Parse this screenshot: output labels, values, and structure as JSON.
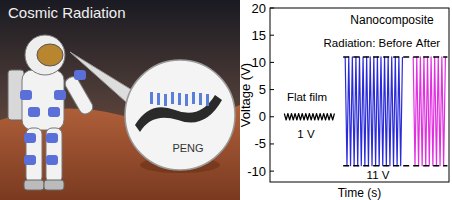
{
  "illustration": {
    "title": "Cosmic Radiation",
    "label": "PENG"
  },
  "chart_data": {
    "type": "line",
    "y_label": "Voltage (V)",
    "x_label": "Time (s)",
    "xlim": [
      0,
      100
    ],
    "ylim": [
      -12,
      20
    ],
    "yticks": [
      -10,
      -5,
      0,
      5,
      10,
      15,
      20
    ],
    "tick_labels": "y",
    "grid": false,
    "series": [
      {
        "color": "#000000",
        "x": [
          8,
          9,
          10,
          11,
          12,
          13,
          14,
          15,
          16,
          17,
          18,
          19,
          20,
          21,
          22,
          23,
          24,
          25,
          26,
          27,
          28,
          29,
          30,
          31,
          32,
          33,
          34,
          35,
          36
        ],
        "values": [
          0.6,
          -0.6,
          0.6,
          -0.6,
          0.6,
          -0.6,
          0.6,
          -0.6,
          0.6,
          -0.6,
          0.6,
          -0.6,
          0.6,
          -0.6,
          0.6,
          -0.6,
          0.6,
          -0.6,
          0.6,
          -0.6,
          0.6,
          -0.6,
          0.6,
          -0.6,
          0.6,
          -0.6,
          0.6,
          -0.6,
          0.6
        ]
      },
      {
        "color": "#2a2ad8",
        "x": [
          42,
          43,
          44,
          45,
          46,
          47,
          48,
          49,
          50,
          51,
          52,
          53,
          54,
          55,
          56,
          57,
          58,
          59,
          60,
          61,
          62,
          63,
          64,
          65,
          66,
          67,
          68,
          69,
          70,
          71,
          72,
          73,
          74
        ],
        "values": [
          11,
          -9,
          11,
          -9,
          11,
          -9,
          11,
          -9,
          11,
          -9,
          11,
          -9,
          11,
          -9,
          11,
          -9,
          11,
          -9,
          11,
          -9,
          11,
          -9,
          11,
          -9,
          11,
          -9,
          11,
          -9,
          11,
          -9,
          11,
          -9,
          11
        ]
      },
      {
        "color": "#e030e0",
        "x": [
          80,
          81,
          82,
          83,
          84,
          85,
          86,
          87,
          88,
          89,
          90,
          91,
          92,
          93,
          94,
          95,
          96,
          97,
          98
        ],
        "values": [
          11,
          -9,
          11,
          -9,
          11,
          -9,
          11,
          -9,
          11,
          -9,
          11,
          -9,
          11,
          -9,
          11,
          -9,
          11,
          -9,
          11
        ]
      }
    ],
    "reference_lines": [
      11,
      -9
    ],
    "annotations": [
      "Nanocomposite",
      "Radiation: Before",
      "After",
      "Flat film",
      "1 V",
      "11 V"
    ]
  }
}
